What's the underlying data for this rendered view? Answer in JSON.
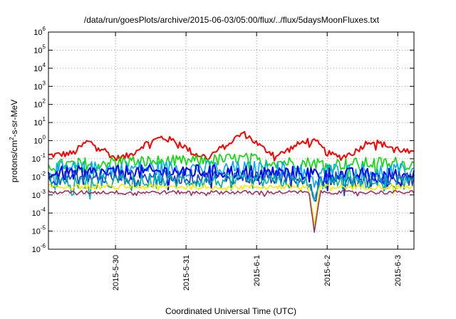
{
  "chart_data": {
    "type": "line",
    "title": "/data/run/goesPlots/archive/2015-06-03/05:00/flux/../flux/5daysMoonFluxes.txt",
    "xlabel": "Coordinated Universal Time (UTC)",
    "ylabel_parts": [
      "protons/cm",
      "2",
      "-s-sr-MeV"
    ],
    "y_scale": "log",
    "ylim": [
      1e-06,
      1000000.0
    ],
    "y_ticks": [
      {
        "base": "10",
        "exp": "-6",
        "value": 1e-06
      },
      {
        "base": "10",
        "exp": "-5",
        "value": 1e-05
      },
      {
        "base": "10",
        "exp": "-4",
        "value": 0.0001
      },
      {
        "base": "10",
        "exp": "-3",
        "value": 0.001
      },
      {
        "base": "10",
        "exp": "-2",
        "value": 0.01
      },
      {
        "base": "10",
        "exp": "-1",
        "value": 0.1
      },
      {
        "base": "10",
        "exp": "0",
        "value": 1
      },
      {
        "base": "10",
        "exp": "1",
        "value": 10
      },
      {
        "base": "10",
        "exp": "2",
        "value": 100
      },
      {
        "base": "10",
        "exp": "3",
        "value": 1000
      },
      {
        "base": "10",
        "exp": "4",
        "value": 10000
      },
      {
        "base": "10",
        "exp": "5",
        "value": 100000
      },
      {
        "base": "10",
        "exp": "6",
        "value": 1000000
      }
    ],
    "x_range_days": [
      -1.95,
      3.23
    ],
    "x_ticks": [
      {
        "label": "2015-5-30",
        "day": -1
      },
      {
        "label": "2015-5-31",
        "day": 0
      },
      {
        "label": "2015-6-1",
        "day": 1
      },
      {
        "label": "2015-6-2",
        "day": 2
      },
      {
        "label": "2015-6-3",
        "day": 3
      }
    ],
    "grid": true,
    "series": [
      {
        "color": "#ff0000",
        "base": 0.35,
        "spread": 0.18,
        "dip": false,
        "shape": [
          [
            -1.95,
            0.15
          ],
          [
            -1.6,
            0.2
          ],
          [
            -1.4,
            0.9
          ],
          [
            -1.2,
            0.4
          ],
          [
            -1.0,
            0.1
          ],
          [
            -0.8,
            0.15
          ],
          [
            -0.6,
            0.6
          ],
          [
            -0.35,
            1.5
          ],
          [
            -0.1,
            0.8
          ],
          [
            0.1,
            0.2
          ],
          [
            0.3,
            0.12
          ],
          [
            0.55,
            0.5
          ],
          [
            0.8,
            2.6
          ],
          [
            0.9,
            1.5
          ],
          [
            1.1,
            0.35
          ],
          [
            1.3,
            0.15
          ],
          [
            1.5,
            0.4
          ],
          [
            1.7,
            1.0
          ],
          [
            1.85,
            0.8
          ],
          [
            2.0,
            0.2
          ],
          [
            2.2,
            0.12
          ],
          [
            2.4,
            0.25
          ],
          [
            2.6,
            1.0
          ],
          [
            2.8,
            0.6
          ],
          [
            3.0,
            0.35
          ],
          [
            3.23,
            0.18
          ]
        ]
      },
      {
        "color": "#00dd00",
        "base": 0.07,
        "spread": 0.35,
        "dip": false,
        "shape": [
          [
            -1.95,
            0.04
          ],
          [
            -1.0,
            0.07
          ],
          [
            0.0,
            0.07
          ],
          [
            0.8,
            0.1
          ],
          [
            1.5,
            0.06
          ],
          [
            1.8,
            0.06
          ],
          [
            2.0,
            0.05
          ],
          [
            3.0,
            0.06
          ],
          [
            3.23,
            0.045
          ]
        ]
      },
      {
        "color": "#00aaff",
        "base": 0.03,
        "spread": 0.45,
        "dip": true,
        "shape": [
          [
            -1.95,
            0.025
          ],
          [
            0.0,
            0.03
          ],
          [
            1.7,
            0.025
          ],
          [
            2.3,
            0.02
          ],
          [
            3.23,
            0.02
          ]
        ]
      },
      {
        "color": "#0000ff",
        "base": 0.02,
        "spread": 0.4,
        "dip": false,
        "shape": [
          [
            -1.95,
            0.015
          ],
          [
            0.0,
            0.02
          ],
          [
            1.7,
            0.016
          ],
          [
            2.3,
            0.013
          ],
          [
            3.23,
            0.012
          ]
        ]
      },
      {
        "color": "#1a3fd0",
        "base": 0.01,
        "spread": 0.4,
        "dip": true,
        "shape": [
          [
            -1.95,
            0.009
          ],
          [
            0.0,
            0.01
          ],
          [
            1.7,
            0.009
          ],
          [
            2.3,
            0.008
          ],
          [
            3.23,
            0.008
          ]
        ]
      },
      {
        "color": "#00b0a0",
        "base": 0.006,
        "spread": 0.4,
        "dip": true,
        "shape": [
          [
            -1.95,
            0.005
          ],
          [
            0.0,
            0.006
          ],
          [
            1.7,
            0.005
          ],
          [
            2.3,
            0.005
          ],
          [
            3.23,
            0.005
          ]
        ]
      },
      {
        "color": "#ffe800",
        "base": 0.0028,
        "spread": 0.15,
        "dip": true,
        "shape": [
          [
            -1.95,
            0.0028
          ],
          [
            3.23,
            0.0028
          ]
        ]
      },
      {
        "color": "#993366",
        "base": 0.0014,
        "spread": 0.1,
        "dip": true,
        "shape": [
          [
            -1.95,
            0.0014
          ],
          [
            3.23,
            0.0014
          ]
        ]
      }
    ]
  }
}
